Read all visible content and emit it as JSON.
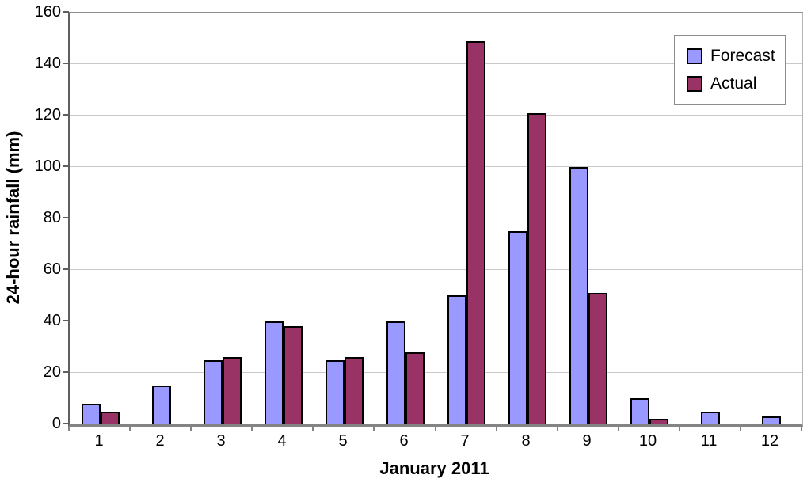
{
  "chart_data": {
    "type": "bar",
    "title": "",
    "xlabel": "January 2011",
    "ylabel": "24-hour rainfall (mm)",
    "categories": [
      "1",
      "2",
      "3",
      "4",
      "5",
      "6",
      "7",
      "8",
      "9",
      "10",
      "11",
      "12"
    ],
    "series": [
      {
        "name": "Forecast",
        "color": "#9999FF",
        "values": [
          8,
          15,
          25,
          40,
          25,
          40,
          50,
          75,
          100,
          10,
          5,
          3
        ]
      },
      {
        "name": "Actual",
        "color": "#993366",
        "values": [
          5,
          0,
          26,
          38,
          26,
          28,
          149,
          121,
          51,
          2,
          0,
          0
        ]
      }
    ],
    "ylim": [
      0,
      160
    ],
    "yticks": [
      0,
      20,
      40,
      60,
      80,
      100,
      120,
      140,
      160
    ],
    "grid": true,
    "legend_position": "top-right",
    "colors": {
      "gridline": "#c9c9c9",
      "axis": "#848484",
      "bar_border": "#000000",
      "background": "#ffffff",
      "text": "#000000"
    }
  }
}
